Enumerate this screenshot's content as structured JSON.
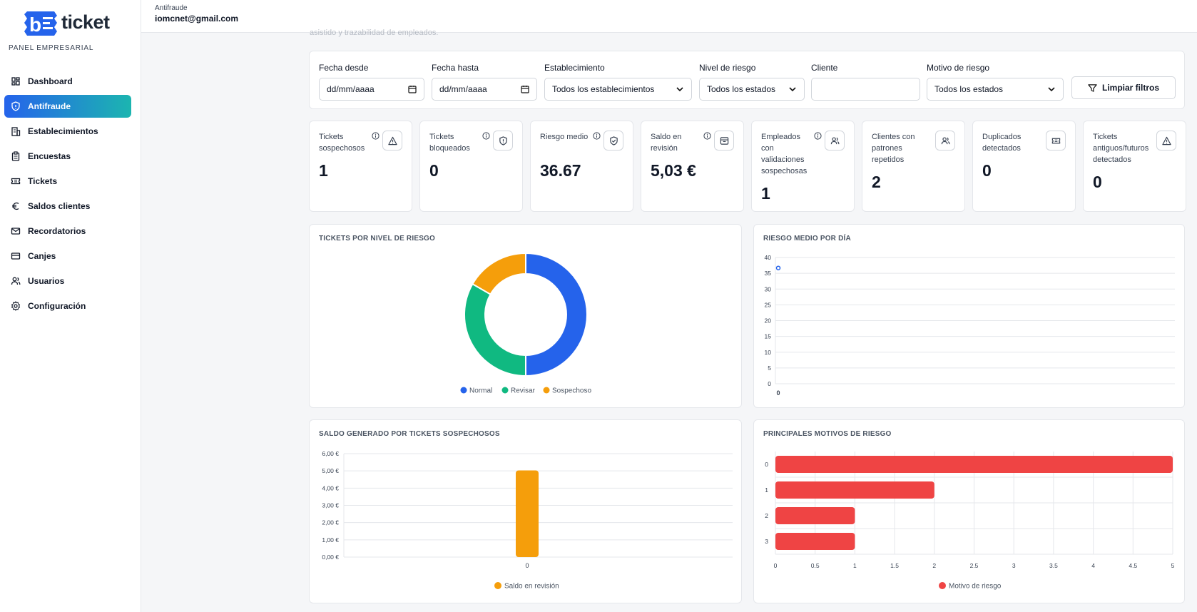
{
  "brand": {
    "name": "ticket",
    "panel_label": "PANEL EMPRESARIAL",
    "accent": "#2563eb",
    "accent2": "#1cb5b0"
  },
  "sidebar": {
    "items": [
      {
        "label": "Dashboard",
        "icon": "dashboard-icon",
        "active": false
      },
      {
        "label": "Antifraude",
        "icon": "shield-icon",
        "active": true
      },
      {
        "label": "Establecimientos",
        "icon": "building-icon",
        "active": false
      },
      {
        "label": "Encuestas",
        "icon": "clipboard-icon",
        "active": false
      },
      {
        "label": "Tickets",
        "icon": "ticket-icon",
        "active": false
      },
      {
        "label": "Saldos clientes",
        "icon": "euro-icon",
        "active": false
      },
      {
        "label": "Recordatorios",
        "icon": "mail-icon",
        "active": false
      },
      {
        "label": "Canjes",
        "icon": "card-icon",
        "active": false
      },
      {
        "label": "Usuarios",
        "icon": "users-icon",
        "active": false
      },
      {
        "label": "Configuración",
        "icon": "gear-icon",
        "active": false
      }
    ]
  },
  "header": {
    "breadcrumb": "Antifraude",
    "user_email": "iomcnet@gmail.com",
    "description_fragment": "asistido y trazabilidad de empleados."
  },
  "filters": {
    "date_from": {
      "label": "Fecha desde",
      "value": "dd/mm/aaaa"
    },
    "date_to": {
      "label": "Fecha hasta",
      "value": "dd/mm/aaaa"
    },
    "establishment": {
      "label": "Establecimiento",
      "value": "Todos los establecimientos"
    },
    "risk_level": {
      "label": "Nivel de riesgo",
      "value": "Todos los estados"
    },
    "client": {
      "label": "Cliente",
      "value": ""
    },
    "risk_reason": {
      "label": "Motivo de riesgo",
      "value": "Todos los estados"
    },
    "clear_label": "Limpiar filtros"
  },
  "stats": [
    {
      "title": "Tickets sospechosos",
      "value": "1",
      "icon": "alert-triangle-icon",
      "info": true
    },
    {
      "title": "Tickets bloqueados",
      "value": "0",
      "icon": "shield-alert-icon",
      "info": true
    },
    {
      "title": "Riesgo medio",
      "value": "36.67",
      "icon": "shield-check-icon",
      "info": true
    },
    {
      "title": "Saldo en revisión",
      "value": "5,03 €",
      "icon": "archive-icon",
      "info": true
    },
    {
      "title": "Empleados con validaciones sospechosas",
      "value": "1",
      "icon": "users-icon",
      "info": true
    },
    {
      "title": "Clientes con patrones repetidos",
      "value": "2",
      "icon": "users-icon",
      "info": false
    },
    {
      "title": "Duplicados detectados",
      "value": "0",
      "icon": "ticket-icon",
      "info": false
    },
    {
      "title": "Tickets antiguos/futuros detectados",
      "value": "0",
      "icon": "alert-triangle-icon",
      "info": false
    }
  ],
  "chart_data": [
    {
      "type": "pie",
      "title": "TICKETS POR NIVEL DE RIESGO",
      "categories": [
        "Normal",
        "Revisar",
        "Sospechoso"
      ],
      "values": [
        50,
        33.3,
        16.7
      ],
      "colors": [
        "#2563eb",
        "#10b981",
        "#f59e0b"
      ],
      "legend": "bottom"
    },
    {
      "type": "line",
      "title": "RIESGO MEDIO POR DÍA",
      "x": [
        "0"
      ],
      "series": [
        {
          "values": [
            36.67
          ],
          "color": "#2563eb"
        }
      ],
      "ylim": [
        0,
        40
      ],
      "yticks": [
        "0",
        "5",
        "10",
        "15",
        "20",
        "25",
        "30",
        "35",
        "40"
      ],
      "grid": true
    },
    {
      "type": "bar",
      "title": "SALDO GENERADO POR TICKETS SOSPECHOSOS",
      "categories": [
        "0"
      ],
      "series": [
        {
          "name": "Saldo en revisión",
          "values": [
            5.03
          ],
          "color": "#f59e0b"
        }
      ],
      "ylim": [
        0,
        6
      ],
      "yticks": [
        "0,00 €",
        "1,00 €",
        "2,00 €",
        "3,00 €",
        "4,00 €",
        "5,00 €",
        "6,00 €"
      ],
      "legend": "bottom"
    },
    {
      "type": "bar",
      "orientation": "horizontal",
      "title": "PRINCIPALES MOTIVOS DE RIESGO",
      "categories": [
        "0",
        "1",
        "2",
        "3"
      ],
      "series": [
        {
          "name": "Motivo de riesgo",
          "values": [
            5,
            2,
            1,
            1
          ],
          "color": "#ef4444"
        }
      ],
      "xlim": [
        0,
        5
      ],
      "xticks": [
        "0",
        "0.5",
        "1",
        "1.5",
        "2",
        "2.5",
        "3",
        "3.5",
        "4",
        "4.5",
        "5"
      ],
      "legend": "bottom"
    }
  ]
}
